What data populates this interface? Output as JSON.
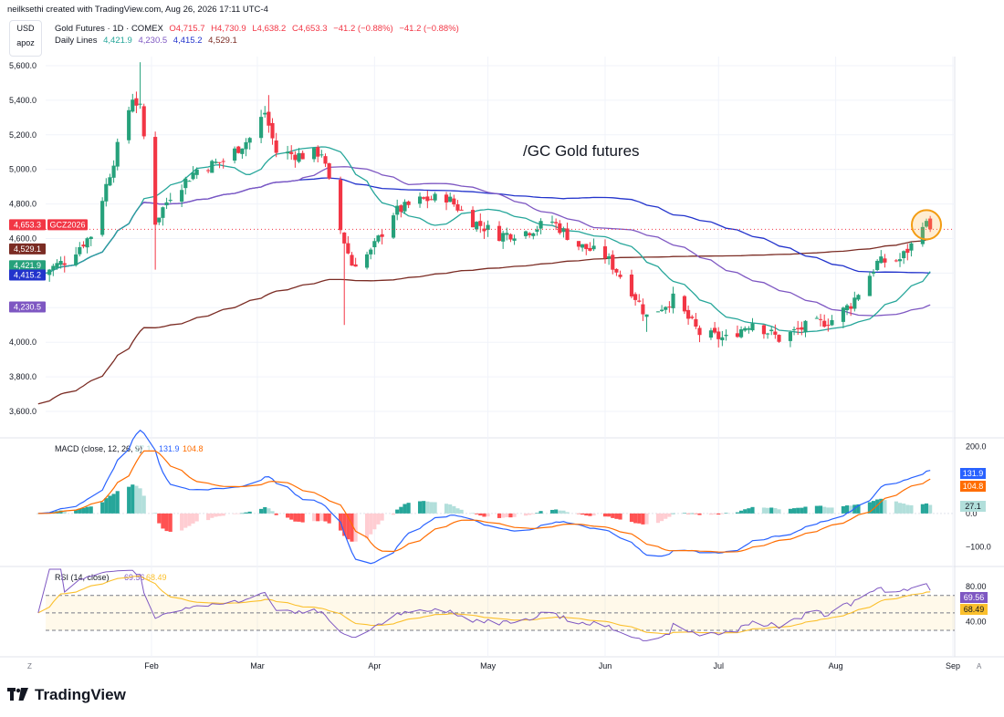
{
  "header": {
    "attribution": "neilksethi created with TradingView.com, Aug 26, 2026 17:11 UTC-4"
  },
  "scale_box": {
    "currency": "USD",
    "mode": "apoz"
  },
  "legend": {
    "symbol": "Gold Futures · 1D · COMEX",
    "ohlc": [
      {
        "k": "O",
        "v": "4,715.7"
      },
      {
        "k": "H",
        "v": "4,730.9"
      },
      {
        "k": "L",
        "v": "4,638.2"
      },
      {
        "k": "C",
        "v": "4,653.3"
      }
    ],
    "change": "−41.2 (−0.88%)",
    "change2": "−41.2 (−0.88%)",
    "lines_label": "Daily Lines",
    "lines_values": [
      "4,421.9",
      "4,230.5",
      "4,415.2",
      "4,529.1"
    ]
  },
  "annotation": "/GC Gold futures",
  "price_badges": [
    {
      "text": "4,653.3",
      "color": "#f23645"
    },
    {
      "text": "GCZ2026",
      "color": "#f23645"
    },
    {
      "text": "4,529.1",
      "color": "#7b2c24"
    },
    {
      "text": "4,421.9",
      "color": "#26a17b"
    },
    {
      "text": "4,415.2",
      "color": "#2233cc"
    },
    {
      "text": "4,230.5",
      "color": "#7e57c2"
    }
  ],
  "macd": {
    "label": "MACD (close, 12, 26, 9)",
    "values": [
      "27.1",
      "131.9",
      "104.8"
    ],
    "ticks": [
      "200.0",
      "0.0",
      "−100.0"
    ],
    "badges": [
      {
        "text": "131.9",
        "color": "#2962ff"
      },
      {
        "text": "104.8",
        "color": "#ff6d00"
      },
      {
        "text": "27.1",
        "color": "#b2dfdb"
      }
    ]
  },
  "rsi": {
    "label": "RSI (14, close)",
    "values": [
      "69.56",
      "68.49"
    ],
    "ticks": [
      "80.00",
      "40.00"
    ],
    "badges": [
      {
        "text": "69.56",
        "color": "#7e57c2"
      },
      {
        "text": "68.49",
        "color": "#fbc02d"
      }
    ]
  },
  "x_months": [
    "Feb",
    "Mar",
    "Apr",
    "May",
    "Jun",
    "Jul",
    "Aug",
    "Sep"
  ],
  "corner": {
    "left": "Z",
    "right": "A"
  },
  "footer": {
    "brand": "TradingView"
  },
  "colors": {
    "up": "#26a17b",
    "down": "#f23645",
    "ma20": "#26a69a",
    "ma50": "#7e57c2",
    "ma100": "#2233cc",
    "ma200": "#7b2c24"
  },
  "chart_data": {
    "type": "candlestick",
    "title": "Gold Futures · 1D · COMEX",
    "ylabel": "USD",
    "ylim": [
      3500,
      5700
    ],
    "y_ticks": [
      "5,600.0",
      "5,400.0",
      "5,200.0",
      "5,000.0",
      "4,800.0",
      "4,600.0",
      "4,400.0",
      "4,200.0",
      "4,000.0",
      "3,800.0",
      "3,600.0"
    ],
    "x_ticks": [
      "Feb",
      "Mar",
      "Apr",
      "May",
      "Jun",
      "Jul",
      "Aug",
      "Sep"
    ],
    "close_series": [
      {
        "date": "2026-01-02",
        "close": 4390
      },
      {
        "date": "2026-01-09",
        "close": 4470
      },
      {
        "date": "2026-01-16",
        "close": 4620
      },
      {
        "date": "2026-01-21",
        "close": 4980
      },
      {
        "date": "2026-01-27",
        "close": 5420
      },
      {
        "date": "2026-01-29",
        "close": 5350
      },
      {
        "date": "2026-02-02",
        "close": 4700
      },
      {
        "date": "2026-02-06",
        "close": 4850
      },
      {
        "date": "2026-02-13",
        "close": 5000
      },
      {
        "date": "2026-02-20",
        "close": 5050
      },
      {
        "date": "2026-02-27",
        "close": 5180
      },
      {
        "date": "2026-03-03",
        "close": 5330
      },
      {
        "date": "2026-03-06",
        "close": 5100
      },
      {
        "date": "2026-03-13",
        "close": 5080
      },
      {
        "date": "2026-03-18",
        "close": 5100
      },
      {
        "date": "2026-03-23",
        "close": 4650
      },
      {
        "date": "2026-03-26",
        "close": 4450
      },
      {
        "date": "2026-03-31",
        "close": 4520
      },
      {
        "date": "2026-04-06",
        "close": 4750
      },
      {
        "date": "2026-04-13",
        "close": 4820
      },
      {
        "date": "2026-04-20",
        "close": 4840
      },
      {
        "date": "2026-04-27",
        "close": 4700
      },
      {
        "date": "2026-05-04",
        "close": 4620
      },
      {
        "date": "2026-05-11",
        "close": 4640
      },
      {
        "date": "2026-05-18",
        "close": 4700
      },
      {
        "date": "2026-05-25",
        "close": 4560
      },
      {
        "date": "2026-06-01",
        "close": 4500
      },
      {
        "date": "2026-06-08",
        "close": 4300
      },
      {
        "date": "2026-06-12",
        "close": 4150
      },
      {
        "date": "2026-06-19",
        "close": 4250
      },
      {
        "date": "2026-06-26",
        "close": 4050
      },
      {
        "date": "2026-07-03",
        "close": 4020
      },
      {
        "date": "2026-07-10",
        "close": 4120
      },
      {
        "date": "2026-07-17",
        "close": 4020
      },
      {
        "date": "2026-07-24",
        "close": 4090
      },
      {
        "date": "2026-07-31",
        "close": 4130
      },
      {
        "date": "2026-08-05",
        "close": 4220
      },
      {
        "date": "2026-08-12",
        "close": 4460
      },
      {
        "date": "2026-08-18",
        "close": 4480
      },
      {
        "date": "2026-08-21",
        "close": 4560
      },
      {
        "date": "2026-08-24",
        "close": 4700
      },
      {
        "date": "2026-08-26",
        "close": 4653.3
      }
    ],
    "series": [
      {
        "name": "MA (teal)",
        "last": 4421.9
      },
      {
        "name": "MA (purple)",
        "last": 4230.5
      },
      {
        "name": "MA (blue)",
        "last": 4415.2
      },
      {
        "name": "MA (brown)",
        "last": 4529.1
      }
    ],
    "macd": {
      "macd": 131.9,
      "signal": 104.8,
      "histogram": 27.1,
      "ylim": [
        -150,
        220
      ]
    },
    "rsi": {
      "rsi": 69.56,
      "rsi_ma": 68.49,
      "bands": [
        70,
        50,
        30
      ]
    }
  }
}
